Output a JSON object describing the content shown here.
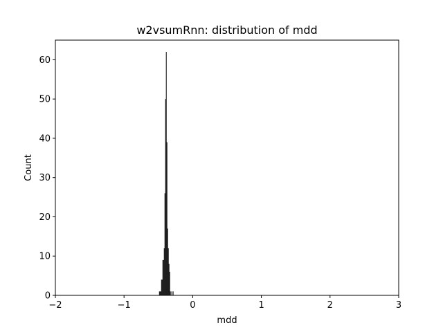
{
  "chart_data": {
    "type": "bar",
    "title": "w2vsumRnn: distribution of mdd",
    "xlabel": "mdd",
    "ylabel": "Count",
    "xlim": [
      -2,
      3
    ],
    "ylim": [
      0,
      65
    ],
    "xticks": [
      "−2",
      "−1",
      "0",
      "1",
      "2",
      "3"
    ],
    "yticks": [
      "0",
      "10",
      "20",
      "30",
      "40",
      "50",
      "60"
    ],
    "bin_width": 0.01,
    "bins": [
      {
        "x": -0.49,
        "count": 1
      },
      {
        "x": -0.48,
        "count": 1
      },
      {
        "x": -0.47,
        "count": 1
      },
      {
        "x": -0.46,
        "count": 4
      },
      {
        "x": -0.45,
        "count": 4
      },
      {
        "x": -0.44,
        "count": 9
      },
      {
        "x": -0.43,
        "count": 9
      },
      {
        "x": -0.42,
        "count": 12
      },
      {
        "x": -0.41,
        "count": 26
      },
      {
        "x": -0.4,
        "count": 50
      },
      {
        "x": -0.39,
        "count": 62
      },
      {
        "x": -0.38,
        "count": 39
      },
      {
        "x": -0.37,
        "count": 17
      },
      {
        "x": -0.36,
        "count": 12
      },
      {
        "x": -0.35,
        "count": 8
      },
      {
        "x": -0.34,
        "count": 6
      },
      {
        "x": -0.33,
        "count": 1
      },
      {
        "x": -0.31,
        "count": 1
      },
      {
        "x": -0.29,
        "count": 1
      }
    ],
    "grid": false,
    "bar_color": "#000000"
  }
}
